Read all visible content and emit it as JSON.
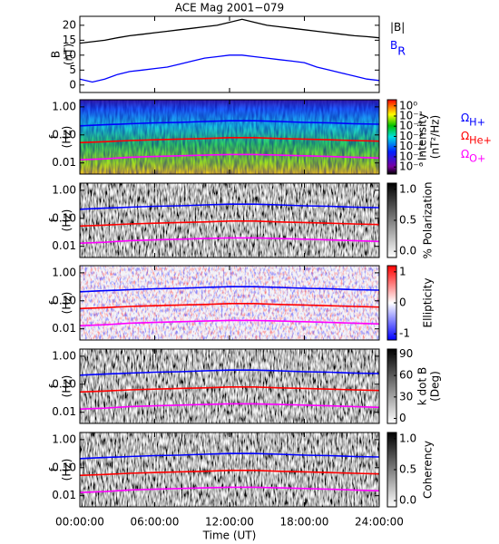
{
  "chart_data": [
    {
      "type": "line",
      "title": "ACE Mag 2001−079",
      "ylabel": "B",
      "yunit": "(nT)",
      "xlim": [
        0,
        24
      ],
      "ylim": [
        -2.5,
        23
      ],
      "yticks": [
        0,
        5,
        10,
        15,
        20
      ],
      "x": [
        0,
        1,
        2,
        3,
        4,
        5,
        6,
        7,
        8,
        9,
        10,
        11,
        12,
        13,
        14,
        15,
        16,
        17,
        18,
        19,
        20,
        21,
        22,
        23,
        24
      ],
      "series": [
        {
          "name": "|B|",
          "color": "#000000",
          "values": [
            14,
            14.5,
            15,
            15.8,
            16.5,
            17,
            17.5,
            18,
            18.5,
            19,
            19.5,
            20,
            21,
            22,
            21,
            20,
            19.5,
            19,
            18.5,
            18,
            17.5,
            17,
            16.5,
            16.2,
            15.8
          ]
        },
        {
          "name": "B",
          "subscript": "R",
          "color": "#0000ff",
          "values": [
            2,
            1,
            2,
            3.5,
            4.5,
            5,
            5.5,
            6,
            7,
            8,
            9,
            9.5,
            10,
            10,
            9.5,
            9,
            8.5,
            8,
            7.5,
            6,
            5,
            4,
            3,
            2,
            1.5
          ]
        }
      ]
    },
    {
      "type": "spectrogram",
      "ylabel": "f",
      "yunit": "(Hz)",
      "log": true,
      "xlim": [
        0,
        24
      ],
      "ylim": [
        0.004,
        1.8
      ],
      "yticks": [
        {
          "value": 1,
          "label": "1.00"
        },
        {
          "value": 0.1,
          "label": "0.10"
        },
        0.01
      ],
      "colorbar_label": "Intensity",
      "colorbar_unit": "(nT²/Hz)",
      "clog": true,
      "clim": [
        2e-07,
        4
      ],
      "cticks": [
        {
          "value": 1,
          "label": "10⁰"
        },
        {
          "value": 0.1,
          "label": "10⁻¹"
        },
        {
          "value": 0.01,
          "label": "10⁻²"
        },
        {
          "value": 0.001,
          "label": "10⁻³"
        },
        {
          "value": 0.0001,
          "label": "10⁻⁴"
        },
        {
          "value": 1e-05,
          "label": "10⁻⁵"
        },
        {
          "value": 1e-06,
          "label": "10⁻⁶"
        }
      ],
      "x": [
        0,
        2,
        4,
        6,
        8,
        10,
        12,
        14,
        16,
        18,
        20,
        22,
        24
      ],
      "series": [
        {
          "name": "Ω",
          "subscript": "H+",
          "color": "#0000ff",
          "values": [
            0.21,
            0.23,
            0.25,
            0.27,
            0.28,
            0.3,
            0.32,
            0.32,
            0.3,
            0.28,
            0.27,
            0.25,
            0.24
          ]
        },
        {
          "name": "Ω",
          "subscript": "He+",
          "color": "#ff0000",
          "values": [
            0.053,
            0.057,
            0.063,
            0.067,
            0.071,
            0.074,
            0.08,
            0.08,
            0.074,
            0.071,
            0.067,
            0.063,
            0.06
          ]
        },
        {
          "name": "Ω",
          "subscript": "O+",
          "color": "#ff00ff",
          "values": [
            0.013,
            0.014,
            0.016,
            0.017,
            0.018,
            0.019,
            0.02,
            0.02,
            0.019,
            0.018,
            0.017,
            0.016,
            0.015
          ]
        }
      ]
    },
    {
      "type": "spectrogram",
      "ylabel": "f",
      "yunit": "(Hz)",
      "log": true,
      "xlim": [
        0,
        24
      ],
      "ylim": [
        0.004,
        1.8
      ],
      "yticks": [
        {
          "value": 1,
          "label": "1.00"
        },
        {
          "value": 0.1,
          "label": "0.10"
        },
        0.01
      ],
      "colorbar_label": "% Polarization",
      "clim": [
        -0.1,
        1.1
      ],
      "cticks": [
        {
          "value": 0,
          "label": "0.0"
        },
        0.5,
        {
          "value": 1,
          "label": "1.0"
        }
      ]
    },
    {
      "type": "spectrogram",
      "ylabel": "f",
      "yunit": "(Hz)",
      "log": true,
      "xlim": [
        0,
        24
      ],
      "ylim": [
        0.004,
        1.8
      ],
      "yticks": [
        {
          "value": 1,
          "label": "1.00"
        },
        {
          "value": 0.1,
          "label": "0.10"
        },
        0.01
      ],
      "colorbar_label": "Ellipticity",
      "clim": [
        -1.2,
        1.2
      ],
      "cticks": [
        -1,
        0,
        1
      ]
    },
    {
      "type": "spectrogram",
      "ylabel": "f",
      "yunit": "(Hz)",
      "log": true,
      "xlim": [
        0,
        24
      ],
      "ylim": [
        0.004,
        1.8
      ],
      "yticks": [
        {
          "value": 1,
          "label": "1.00"
        },
        {
          "value": 0.1,
          "label": "0.10"
        },
        0.01
      ],
      "colorbar_label": "k dot B",
      "colorbar_unit": "(Deg)",
      "clim": [
        -7,
        97
      ],
      "cticks": [
        0,
        30,
        60,
        90
      ]
    },
    {
      "type": "spectrogram",
      "ylabel": "f",
      "yunit": "(Hz)",
      "log": true,
      "xlim": [
        0,
        24
      ],
      "ylim": [
        0.004,
        1.8
      ],
      "yticks": [
        {
          "value": 1,
          "label": "1.00"
        },
        {
          "value": 0.1,
          "label": "0.10"
        },
        0.01
      ],
      "colorbar_label": "Coherency",
      "clim": [
        -0.1,
        1.1
      ],
      "cticks": [
        {
          "value": 0,
          "label": "0.0"
        },
        0.5,
        {
          "value": 1,
          "label": "1.0"
        }
      ],
      "xlabel": "Time (UT)",
      "xticks": [
        {
          "value": 0,
          "label": "00:00:00"
        },
        {
          "value": 6,
          "label": "06:00:00"
        },
        {
          "value": 12,
          "label": "12:00:00"
        },
        {
          "value": 18,
          "label": "18:00:00"
        },
        {
          "value": 24,
          "label": "24:00:00"
        }
      ]
    }
  ]
}
